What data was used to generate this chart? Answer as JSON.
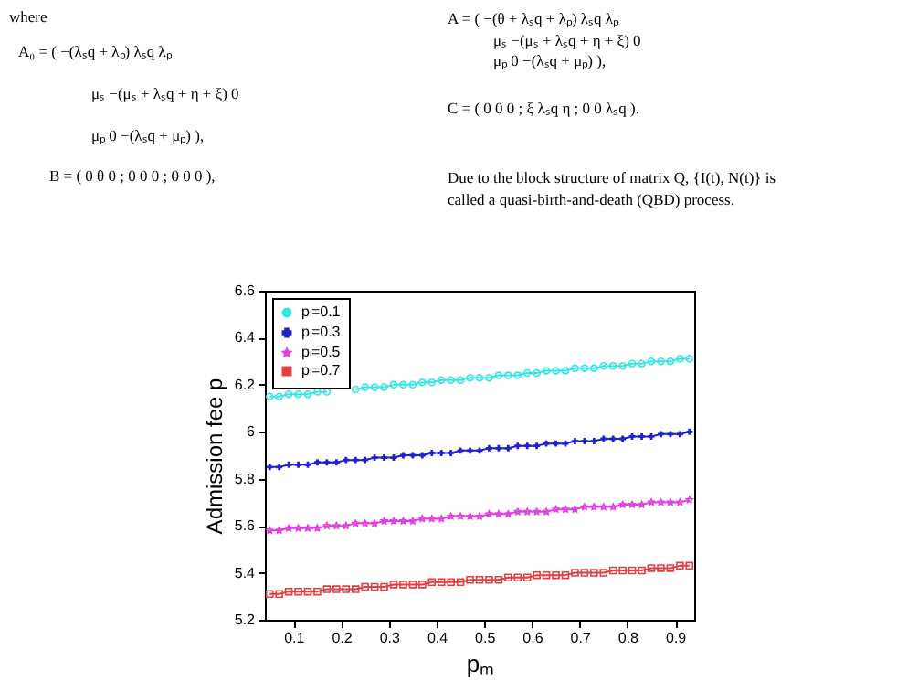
{
  "chart_data": {
    "type": "line",
    "xlabel": "pₘ",
    "ylabel": "Admission fee p",
    "x": [
      0.05,
      0.07,
      0.09,
      0.11,
      0.13,
      0.15,
      0.17,
      0.19,
      0.21,
      0.23,
      0.25,
      0.27,
      0.29,
      0.31,
      0.33,
      0.35,
      0.37,
      0.39,
      0.41,
      0.43,
      0.45,
      0.47,
      0.49,
      0.51,
      0.53,
      0.55,
      0.57,
      0.59,
      0.61,
      0.63,
      0.65,
      0.67,
      0.69,
      0.71,
      0.73,
      0.75,
      0.77,
      0.79,
      0.81,
      0.83,
      0.85,
      0.87,
      0.89,
      0.91,
      0.93
    ],
    "series": [
      {
        "name": "pₗ=0.1",
        "color": "#33e6e6",
        "marker": "circle",
        "values": [
          6.15,
          6.15,
          6.16,
          6.16,
          6.16,
          6.17,
          6.17,
          null,
          null,
          6.18,
          6.19,
          6.19,
          6.19,
          6.2,
          6.2,
          6.2,
          6.21,
          6.21,
          6.22,
          6.22,
          6.22,
          6.23,
          6.23,
          6.23,
          6.24,
          6.24,
          6.24,
          6.25,
          6.25,
          6.26,
          6.26,
          6.26,
          6.27,
          6.27,
          6.27,
          6.28,
          6.28,
          6.28,
          6.29,
          6.29,
          6.3,
          6.3,
          6.3,
          6.31,
          6.31
        ]
      },
      {
        "name": "pₗ=0.3",
        "color": "#2020d0",
        "marker": "cross",
        "values": [
          5.85,
          5.85,
          5.86,
          5.86,
          5.86,
          5.87,
          5.87,
          5.87,
          5.88,
          5.88,
          5.88,
          5.89,
          5.89,
          5.89,
          5.9,
          5.9,
          5.9,
          5.91,
          5.91,
          5.91,
          5.92,
          5.92,
          5.92,
          5.93,
          5.93,
          5.93,
          5.94,
          5.94,
          5.94,
          5.95,
          5.95,
          5.95,
          5.96,
          5.96,
          5.96,
          5.97,
          5.97,
          5.97,
          5.98,
          5.98,
          5.98,
          5.99,
          5.99,
          5.99,
          6.0
        ]
      },
      {
        "name": "pₗ=0.5",
        "color": "#e040e0",
        "marker": "star",
        "values": [
          5.58,
          5.58,
          5.59,
          5.59,
          5.59,
          5.59,
          5.6,
          5.6,
          5.6,
          5.61,
          5.61,
          5.61,
          5.62,
          5.62,
          5.62,
          5.62,
          5.63,
          5.63,
          5.63,
          5.64,
          5.64,
          5.64,
          5.64,
          5.65,
          5.65,
          5.65,
          5.66,
          5.66,
          5.66,
          5.66,
          5.67,
          5.67,
          5.67,
          5.68,
          5.68,
          5.68,
          5.68,
          5.69,
          5.69,
          5.69,
          5.7,
          5.7,
          5.7,
          5.7,
          5.71
        ]
      },
      {
        "name": "pₗ=0.7",
        "color": "#e04040",
        "marker": "square",
        "values": [
          5.31,
          5.31,
          5.32,
          5.32,
          5.32,
          5.32,
          5.33,
          5.33,
          5.33,
          5.33,
          5.34,
          5.34,
          5.34,
          5.35,
          5.35,
          5.35,
          5.35,
          5.36,
          5.36,
          5.36,
          5.36,
          5.37,
          5.37,
          5.37,
          5.37,
          5.38,
          5.38,
          5.38,
          5.39,
          5.39,
          5.39,
          5.39,
          5.4,
          5.4,
          5.4,
          5.4,
          5.41,
          5.41,
          5.41,
          5.41,
          5.42,
          5.42,
          5.42,
          5.43,
          5.43
        ]
      }
    ],
    "xlim": [
      0.04,
      0.94
    ],
    "xticks": [
      0.1,
      0.2,
      0.3,
      0.4,
      0.5,
      0.6,
      0.7,
      0.8,
      0.9
    ],
    "ylim": [
      5.2,
      6.6
    ],
    "yticks": [
      5.2,
      5.4,
      5.6,
      5.8,
      6,
      6.2,
      6.4,
      6.6
    ],
    "grid": false,
    "legend": "top left",
    "line_style": "solid",
    "annotations": [
      "where",
      "A₀ = ( −(λₛq + λₚ)      λₛq      λₚ",
      "μₛ      −(μₛ + λₛq + η + ξ)      0",
      "μₚ      0      −(λₛq + μₚ) ),",
      "B = ( 0 θ 0 ; 0 0 0 ; 0 0 0 ),",
      "A = ( −(θ + λₛq + λₚ)      λₛq      λₚ",
      "μₛ      −(μₛ + λₛq + η + ξ)      0",
      "μₚ      0      −(λₛq + μₚ) ),",
      "C = ( 0 0 0 ; ξ λₛq η ; 0 0 λₛq ).",
      "Due to the block structure of matrix Q, {I(t), N(t)} is",
      "called a quasi-birth-and-death (QBD) process."
    ]
  }
}
